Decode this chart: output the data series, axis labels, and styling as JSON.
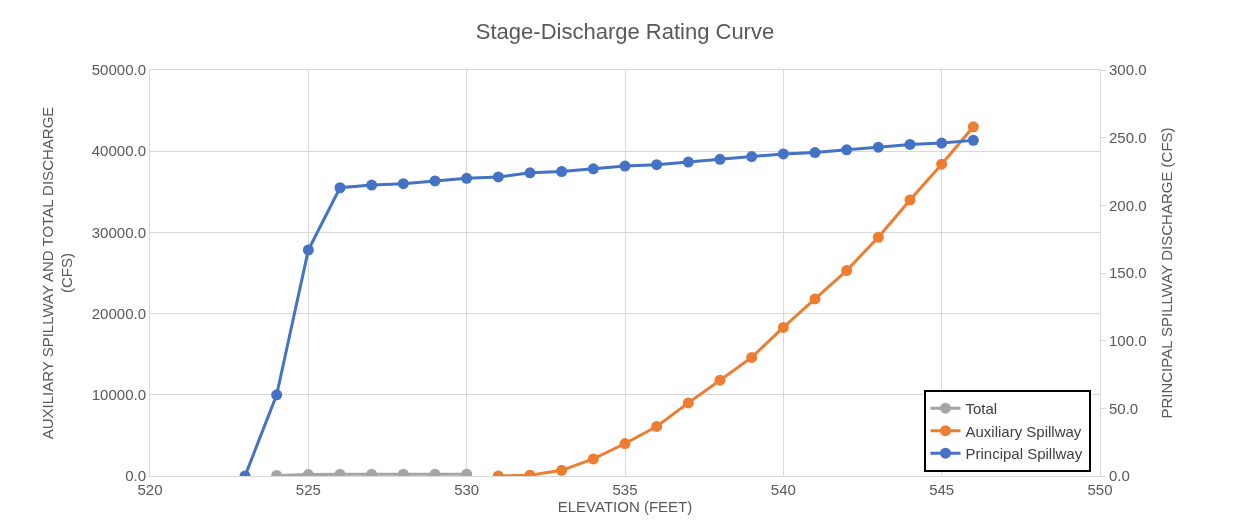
{
  "chart_data": {
    "type": "line",
    "title": "Stage-Discharge Rating Curve",
    "xlabel": "ELEVATION (FEET)",
    "ylabel": "AUXILIARY SPILLWAY AND TOTAL DISCHARGE (CFS)",
    "y2label": "PRINCIPAL SPILLWAY DISCHARGE (CFS)",
    "series": [
      {
        "name": "Total",
        "color": "#a5a5a5",
        "x": [
          524,
          525,
          526,
          527,
          528,
          529,
          530
        ],
        "values": [
          60,
          170,
          210,
          210,
          220,
          220,
          220
        ]
      },
      {
        "name": "Auxiliary Spillway",
        "color": "#ed7d31",
        "x": [
          531,
          532,
          533,
          534,
          535,
          536,
          537,
          538,
          539,
          540,
          541,
          542,
          543,
          544,
          545,
          546
        ],
        "values": [
          0,
          100,
          700,
          2100,
          4000,
          6100,
          9000,
          11800,
          14600,
          18300,
          21800,
          25300,
          29400,
          34000,
          38400,
          43000
        ]
      },
      {
        "name": "Principal Spillway",
        "color": "#4472c4",
        "axis": "y2",
        "x": [
          523,
          524,
          525,
          526,
          527,
          528,
          529,
          530,
          531,
          532,
          533,
          534,
          535,
          536,
          537,
          538,
          539,
          540,
          541,
          542,
          543,
          544,
          545,
          546
        ],
        "values": [
          0,
          60,
          167,
          213,
          215,
          216,
          218,
          220,
          221,
          224,
          225,
          227,
          229,
          230,
          232,
          234,
          236,
          238,
          239,
          241,
          243,
          245,
          246,
          248
        ]
      }
    ],
    "xlim": [
      520,
      550
    ],
    "xticks": [
      520,
      525,
      530,
      535,
      540,
      545,
      550
    ],
    "ylim": [
      0,
      50000
    ],
    "yticks": [
      {
        "value": 0,
        "label": "0.0"
      },
      {
        "value": 10000,
        "label": "10000.0"
      },
      {
        "value": 20000,
        "label": "20000.0"
      },
      {
        "value": 30000,
        "label": "30000.0"
      },
      {
        "value": 40000,
        "label": "40000.0"
      },
      {
        "value": 50000,
        "label": "50000.0"
      }
    ],
    "y2lim": [
      0,
      300
    ],
    "y2ticks": [
      {
        "value": 0,
        "label": "0.0"
      },
      {
        "value": 50,
        "label": "50.0"
      },
      {
        "value": 100,
        "label": "100.0"
      },
      {
        "value": 150,
        "label": "150.0"
      },
      {
        "value": 200,
        "label": "200.0"
      },
      {
        "value": 250,
        "label": "250.0"
      },
      {
        "value": 300,
        "label": "300.0"
      }
    ],
    "grid": true,
    "legend": "bottom right",
    "marker": "circle",
    "line_style": "solid"
  }
}
